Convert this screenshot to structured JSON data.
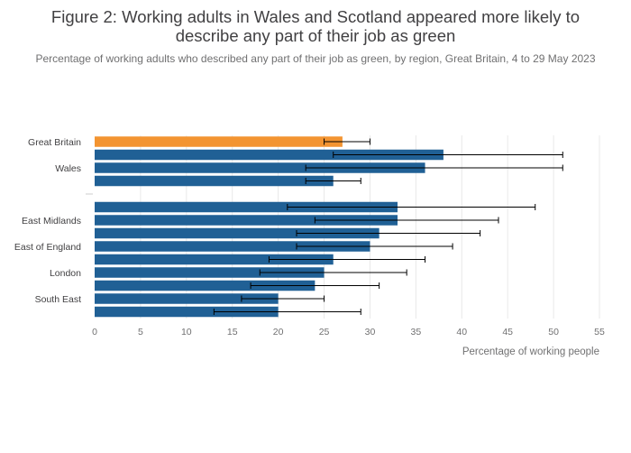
{
  "header": {
    "title": "Figure 2: Working adults in Wales and Scotland appeared more likely to describe any part of their job as green",
    "subtitle": "Percentage of working adults who described any part of their job as green, by region, Great Britain, 4 to 29 May 2023"
  },
  "chart_data": {
    "type": "bar",
    "orientation": "horizontal",
    "xlabel": "Percentage of working people",
    "ylabel": "",
    "xlim": [
      0,
      55
    ],
    "xticks": [
      0,
      5,
      10,
      15,
      20,
      25,
      30,
      35,
      40,
      45,
      50,
      55
    ],
    "grid": true,
    "colors": {
      "highlight": "#f39431",
      "default": "#206095",
      "errorbar": "#000000",
      "grid": "#e8e8e8"
    },
    "categories": [
      {
        "label": "Great Britain",
        "value": 27,
        "ci": [
          25,
          30
        ],
        "highlight": true
      },
      {
        "label": "",
        "value": 38,
        "ci": [
          26,
          51
        ]
      },
      {
        "label": "Wales",
        "value": 36,
        "ci": [
          23,
          51
        ]
      },
      {
        "label": "",
        "value": 26,
        "ci": [
          23,
          29
        ]
      },
      {
        "label": "",
        "value": null,
        "separator": true
      },
      {
        "label": "",
        "value": 33,
        "ci": [
          21,
          48
        ]
      },
      {
        "label": "East Midlands",
        "value": 33,
        "ci": [
          24,
          44
        ]
      },
      {
        "label": "",
        "value": 31,
        "ci": [
          22,
          42
        ]
      },
      {
        "label": "East of England",
        "value": 30,
        "ci": [
          22,
          39
        ]
      },
      {
        "label": "",
        "value": 26,
        "ci": [
          19,
          36
        ]
      },
      {
        "label": "London",
        "value": 25,
        "ci": [
          18,
          34
        ]
      },
      {
        "label": "",
        "value": 24,
        "ci": [
          17,
          31
        ]
      },
      {
        "label": "South East",
        "value": 20,
        "ci": [
          16,
          25
        ]
      },
      {
        "label": "",
        "value": 20,
        "ci": [
          13,
          29
        ]
      }
    ]
  }
}
